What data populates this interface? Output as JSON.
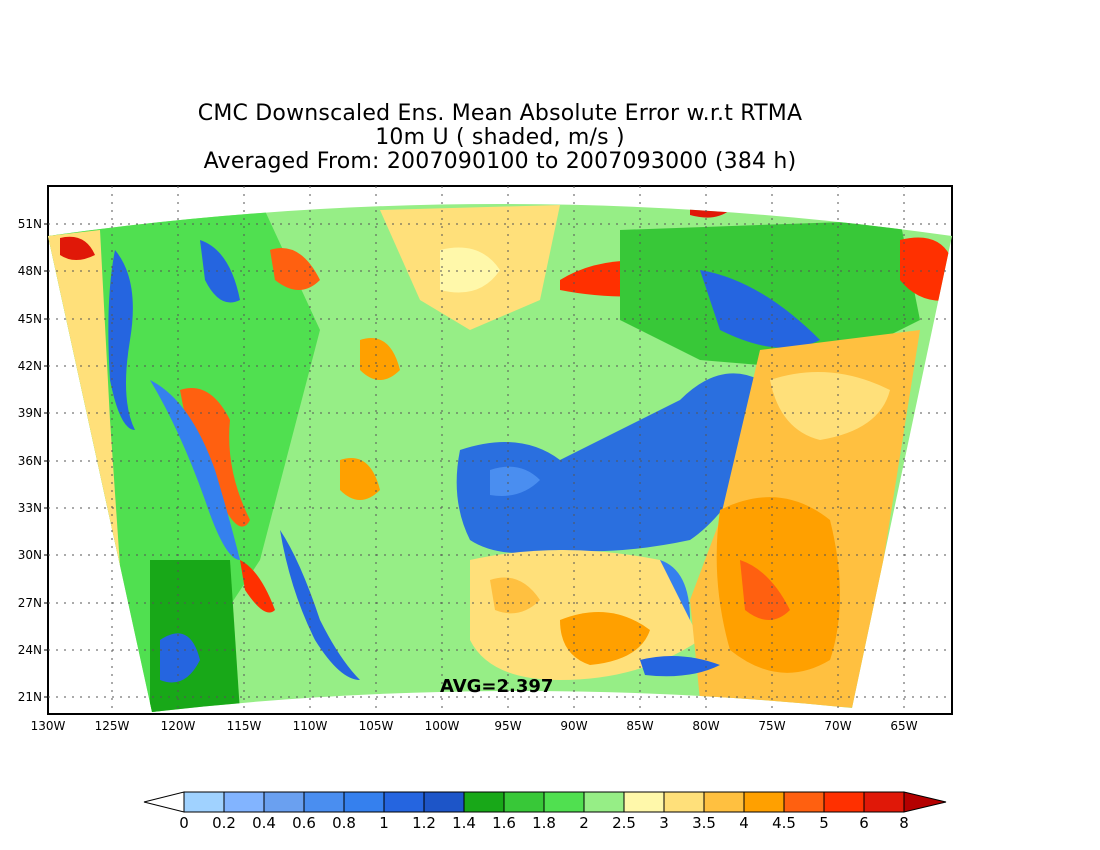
{
  "title": {
    "line1": "CMC Downscaled Ens. Mean Absolute Error w.r.t RTMA",
    "line2": "10m U ( shaded, m/s )",
    "line3": "Averaged From: 2007090100 to 2007093000 (384 h)"
  },
  "avg_label": "AVG=2.397",
  "lat_labels": [
    "51N",
    "48N",
    "45N",
    "42N",
    "39N",
    "36N",
    "33N",
    "30N",
    "27N",
    "24N",
    "21N"
  ],
  "lon_labels": [
    "130W",
    "125W",
    "120W",
    "115W",
    "110W",
    "105W",
    "100W",
    "95W",
    "90W",
    "85W",
    "80W",
    "75W",
    "70W",
    "65W"
  ],
  "colorbar": {
    "labels": [
      "0",
      "0.2",
      "0.4",
      "0.6",
      "0.8",
      "1",
      "1.2",
      "1.4",
      "1.6",
      "1.8",
      "2",
      "2.5",
      "3",
      "3.5",
      "4",
      "4.5",
      "5",
      "6",
      "8"
    ],
    "colors": [
      "#a0d2ff",
      "#82b4ff",
      "#6aa0f0",
      "#4a8ef0",
      "#3580ee",
      "#2565e0",
      "#1d55c8",
      "#18a818",
      "#38c838",
      "#50e050",
      "#96ee86",
      "#fff8aa",
      "#ffe07a",
      "#ffc040",
      "#ffa000",
      "#ff6010",
      "#ff3000",
      "#e01808",
      "#b40000"
    ]
  },
  "colors": {
    "blue": "#2a6fdf",
    "green": "#3cc43c",
    "light_green": "#96ee86",
    "yellow": "#ffe07a",
    "orange": "#ffa030",
    "red": "#ff3a10"
  }
}
